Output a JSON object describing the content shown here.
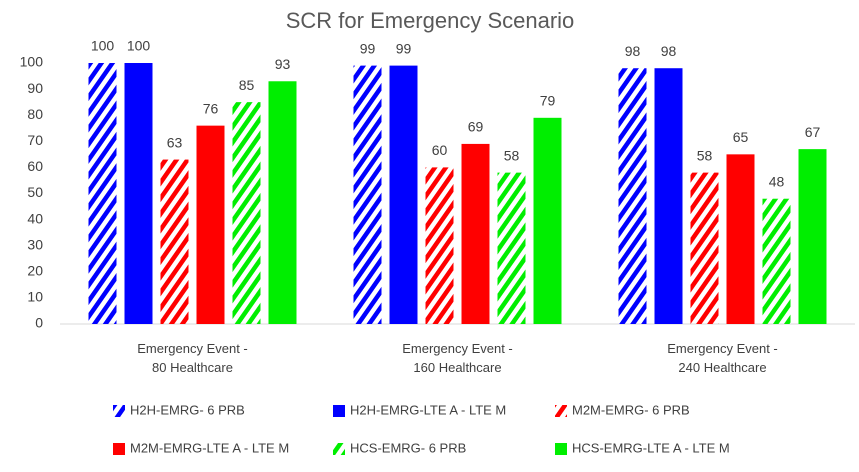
{
  "chart_data": {
    "type": "bar",
    "title": "SCR for Emergency Scenario",
    "categories": [
      "Emergency Event -\n80 Healthcare",
      "Emergency Event -\n160 Healthcare",
      "Emergency Event -\n240 Healthcare"
    ],
    "series": [
      {
        "name": "H2H-EMRG- 6 PRB",
        "color": "#0000ff",
        "hatch": true,
        "values": [
          100,
          99,
          98
        ]
      },
      {
        "name": "H2H-EMRG-LTE A - LTE M",
        "color": "#0000ff",
        "hatch": false,
        "values": [
          100,
          99,
          98
        ]
      },
      {
        "name": "M2M-EMRG- 6 PRB",
        "color": "#ff0000",
        "hatch": true,
        "values": [
          63,
          60,
          58
        ]
      },
      {
        "name": "M2M-EMRG-LTE A - LTE M",
        "color": "#ff0000",
        "hatch": false,
        "values": [
          76,
          69,
          65
        ]
      },
      {
        "name": "HCS-EMRG- 6 PRB",
        "color": "#00ee00",
        "hatch": true,
        "values": [
          85,
          58,
          48
        ]
      },
      {
        "name": "HCS-EMRG-LTE A - LTE M",
        "color": "#00ee00",
        "hatch": false,
        "values": [
          93,
          79,
          67
        ]
      }
    ],
    "ylim": [
      0,
      100
    ],
    "yticks": [
      0,
      10,
      20,
      30,
      40,
      50,
      60,
      70,
      80,
      90,
      100
    ],
    "grid": false,
    "legend": "bottom"
  }
}
